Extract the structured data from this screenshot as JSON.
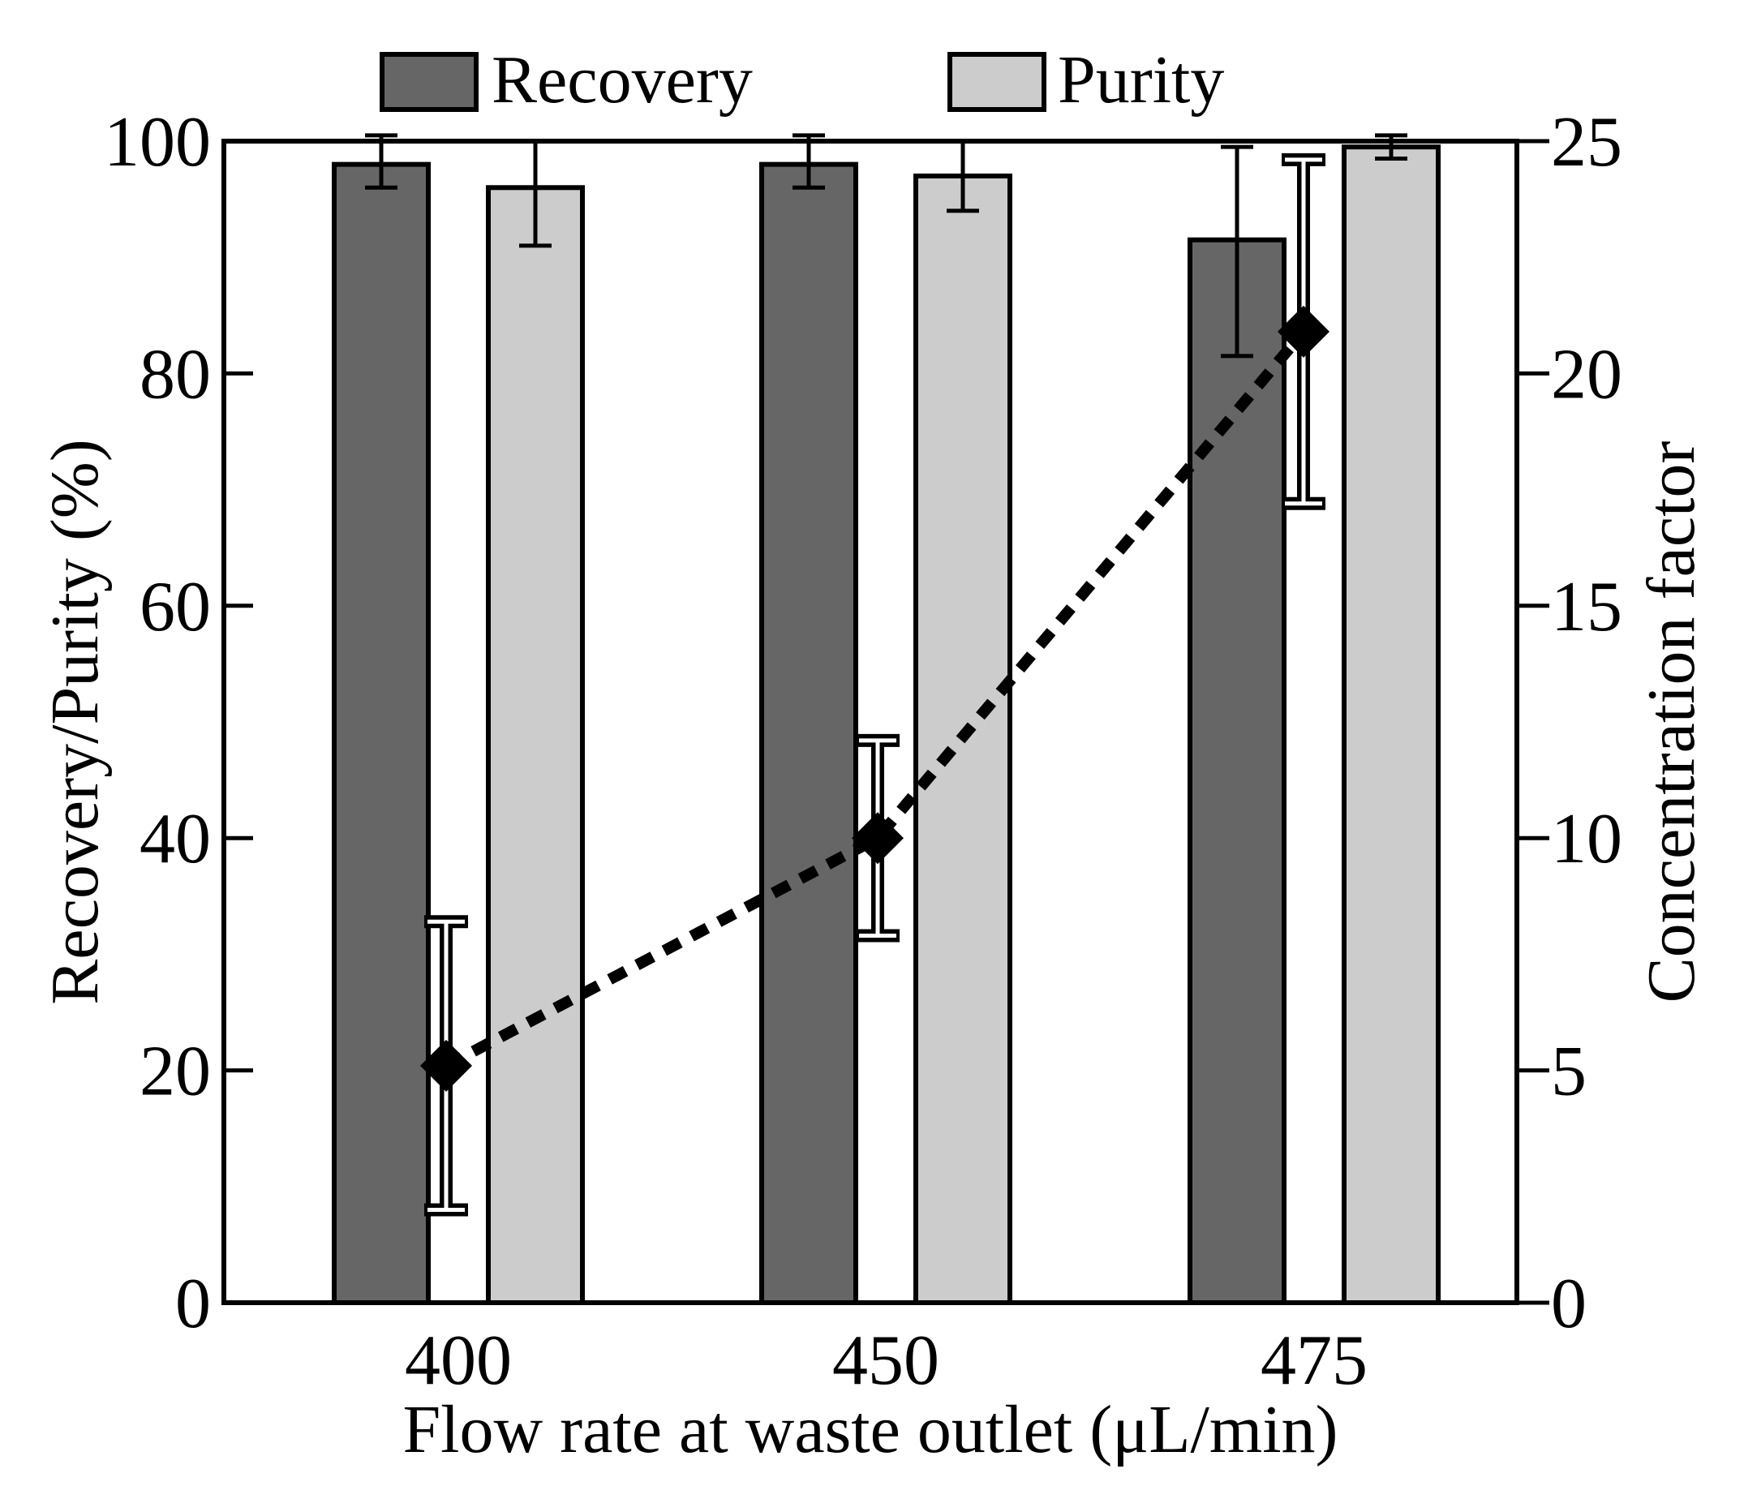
{
  "chart_data": {
    "type": "bar",
    "categories": [
      "400",
      "450",
      "475"
    ],
    "xlabel": "Flow rate at waste outlet (μL/min)",
    "ylabel": "Recovery/Purity (%)",
    "y2label": "Concentration factor",
    "ylim": [
      0,
      100
    ],
    "y2lim": [
      0,
      25
    ],
    "yticks": [
      "0",
      "20",
      "40",
      "60",
      "80",
      "100"
    ],
    "y2ticks": [
      "0",
      "5",
      "10",
      "15",
      "20",
      "25"
    ],
    "series": [
      {
        "name": "Recovery",
        "axis": "left",
        "values": [
          98,
          98,
          91.5
        ],
        "error_low": [
          96,
          96,
          81.5
        ],
        "error_high": [
          100.5,
          100.5,
          99.5
        ],
        "color": "#666666"
      },
      {
        "name": "Purity",
        "axis": "left",
        "values": [
          96,
          97,
          99.5
        ],
        "error_low": [
          91,
          94,
          98.5
        ],
        "error_high": [
          100,
          100,
          100.5
        ],
        "color": "#cccccc"
      },
      {
        "name": "Concentration factor",
        "type": "line",
        "style": "dotted",
        "marker": "diamond",
        "axis": "right",
        "values": [
          5.1,
          10,
          20.9
        ],
        "error_low": [
          2,
          7.9,
          17.2
        ],
        "error_high": [
          8.2,
          12.1,
          24.6
        ],
        "color": "#000000"
      }
    ],
    "legend": {
      "placement": "top-center"
    }
  }
}
